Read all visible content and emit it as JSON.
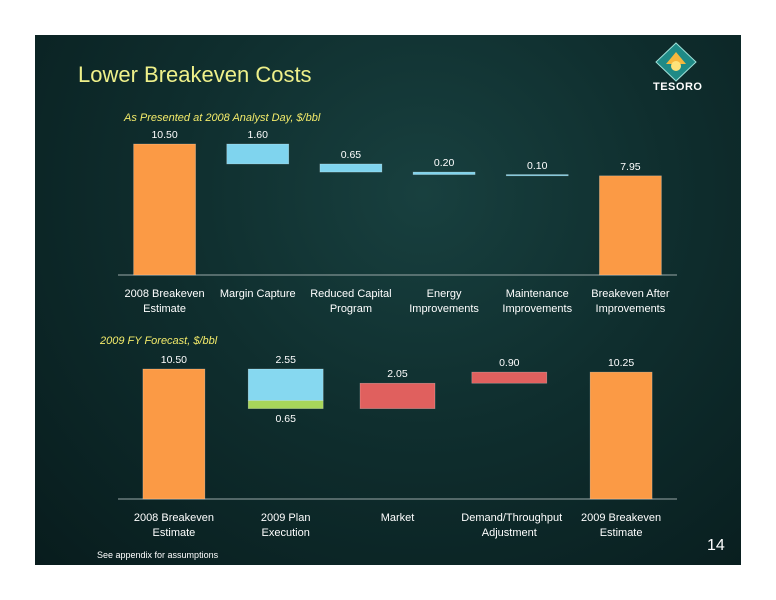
{
  "slide": {
    "title": "Lower Breakeven Costs",
    "logo_text": "TESORO",
    "footnote": "See appendix for assumptions",
    "page_number": "14"
  },
  "chart_data": [
    {
      "type": "waterfall",
      "subtitle": "As Presented at 2008 Analyst Day, $/bbl",
      "categories": [
        "2008 Breakeven Estimate",
        "Margin Capture",
        "Reduced Capital Program",
        "Energy Improvements",
        "Maintenance Improvements",
        "Breakeven After Improvements"
      ],
      "values": [
        10.5,
        -1.6,
        -0.65,
        -0.2,
        -0.1,
        7.95
      ],
      "value_labels": [
        "10.50",
        "1.60",
        "0.65",
        "0.20",
        "0.10",
        "7.95"
      ],
      "colors": [
        "#fb9a45",
        "#7fd4ee",
        "#7fd4ee",
        "#7fd4ee",
        "#7fd4ee",
        "#fb9a45"
      ]
    },
    {
      "type": "waterfall",
      "subtitle": "2009 FY Forecast, $/bbl",
      "categories": [
        "2008 Breakeven Estimate",
        "2009 Plan Execution",
        "Market",
        "Demand/Throughput Adjustment",
        "2009 Breakeven Estimate"
      ],
      "values": [
        10.5,
        [
          -2.55,
          -0.65
        ],
        2.05,
        0.9,
        10.25
      ],
      "value_labels": [
        "10.50",
        [
          "2.55",
          "0.65"
        ],
        "2.05",
        "0.90",
        "10.25"
      ],
      "colors": [
        "#fb9a45",
        [
          "#86d8f0",
          "#a8d65a"
        ],
        "#e0605e",
        "#e0605e",
        "#fb9a45"
      ]
    }
  ]
}
